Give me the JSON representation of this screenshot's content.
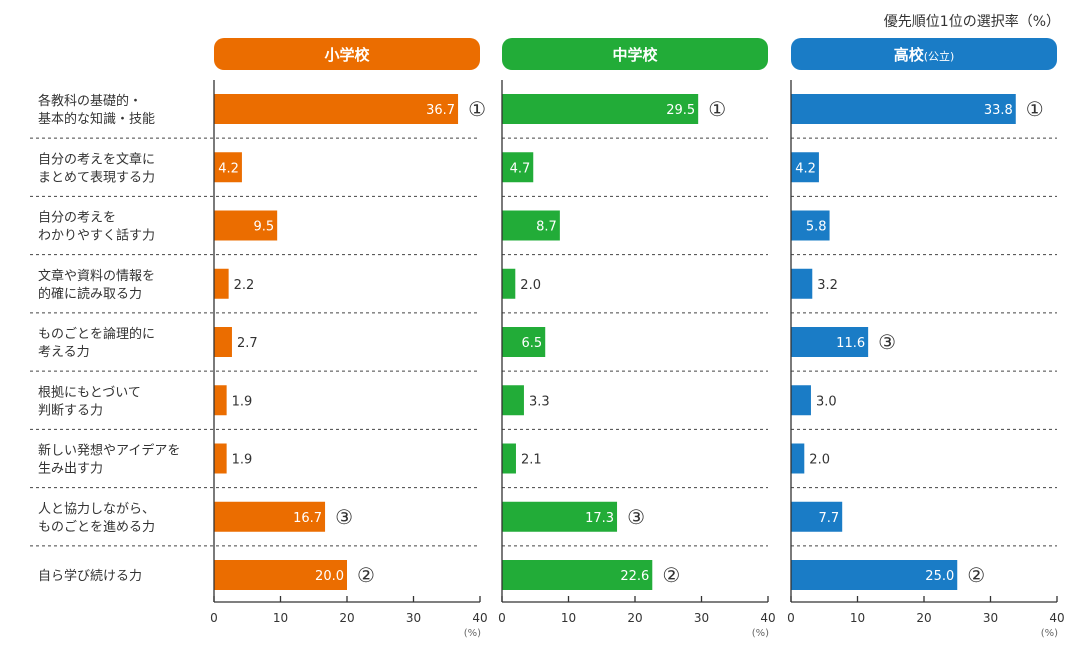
{
  "chart_data": {
    "type": "bar",
    "orientation": "horizontal",
    "title": "優先順位1位の選択率（%）",
    "unit_label": "(%)",
    "xlim": [
      0,
      40
    ],
    "xticks": [
      "0",
      "10",
      "20",
      "30",
      "40"
    ],
    "categories": [
      [
        "各教科の基礎的・",
        "基本的な知識・技能"
      ],
      [
        "自分の考えを文章に",
        "まとめて表現する力"
      ],
      [
        "自分の考えを",
        "わかりやすく話す力"
      ],
      [
        "文章や資料の情報を",
        "的確に読み取る力"
      ],
      [
        "ものごとを論理的に",
        "考える力"
      ],
      [
        "根拠にもとづいて",
        "判断する力"
      ],
      [
        "新しい発想やアイデアを",
        "生み出す力"
      ],
      [
        "人と協力しながら、",
        "ものごとを進める力"
      ],
      [
        "自ら学び続ける力"
      ]
    ],
    "series": [
      {
        "name": "小学校",
        "suffix": "",
        "color": "#EB6D00",
        "values": [
          36.7,
          4.2,
          9.5,
          2.2,
          2.7,
          1.9,
          1.9,
          16.7,
          20.0
        ],
        "value_labels": [
          "36.7",
          "4.2",
          "9.5",
          "2.2",
          "2.7",
          "1.9",
          "1.9",
          "16.7",
          "20.0"
        ],
        "ranks": {
          "0": "①",
          "7": "③",
          "8": "②"
        }
      },
      {
        "name": "中学校",
        "suffix": "",
        "color": "#22AC38",
        "values": [
          29.5,
          4.7,
          8.7,
          2.0,
          6.5,
          3.3,
          2.1,
          17.3,
          22.6
        ],
        "value_labels": [
          "29.5",
          "4.7",
          "8.7",
          "2.0",
          "6.5",
          "3.3",
          "2.1",
          "17.3",
          "22.6"
        ],
        "ranks": {
          "0": "①",
          "7": "③",
          "8": "②"
        }
      },
      {
        "name": "高校",
        "suffix": "(公立)",
        "color": "#1A7CC6",
        "values": [
          33.8,
          4.2,
          5.8,
          3.2,
          11.6,
          3.0,
          2.0,
          7.7,
          25.0
        ],
        "value_labels": [
          "33.8",
          "4.2",
          "5.8",
          "3.2",
          "11.6",
          "3.0",
          "2.0",
          "7.7",
          "25.0"
        ],
        "ranks": {
          "0": "①",
          "4": "③",
          "8": "②"
        }
      }
    ]
  }
}
